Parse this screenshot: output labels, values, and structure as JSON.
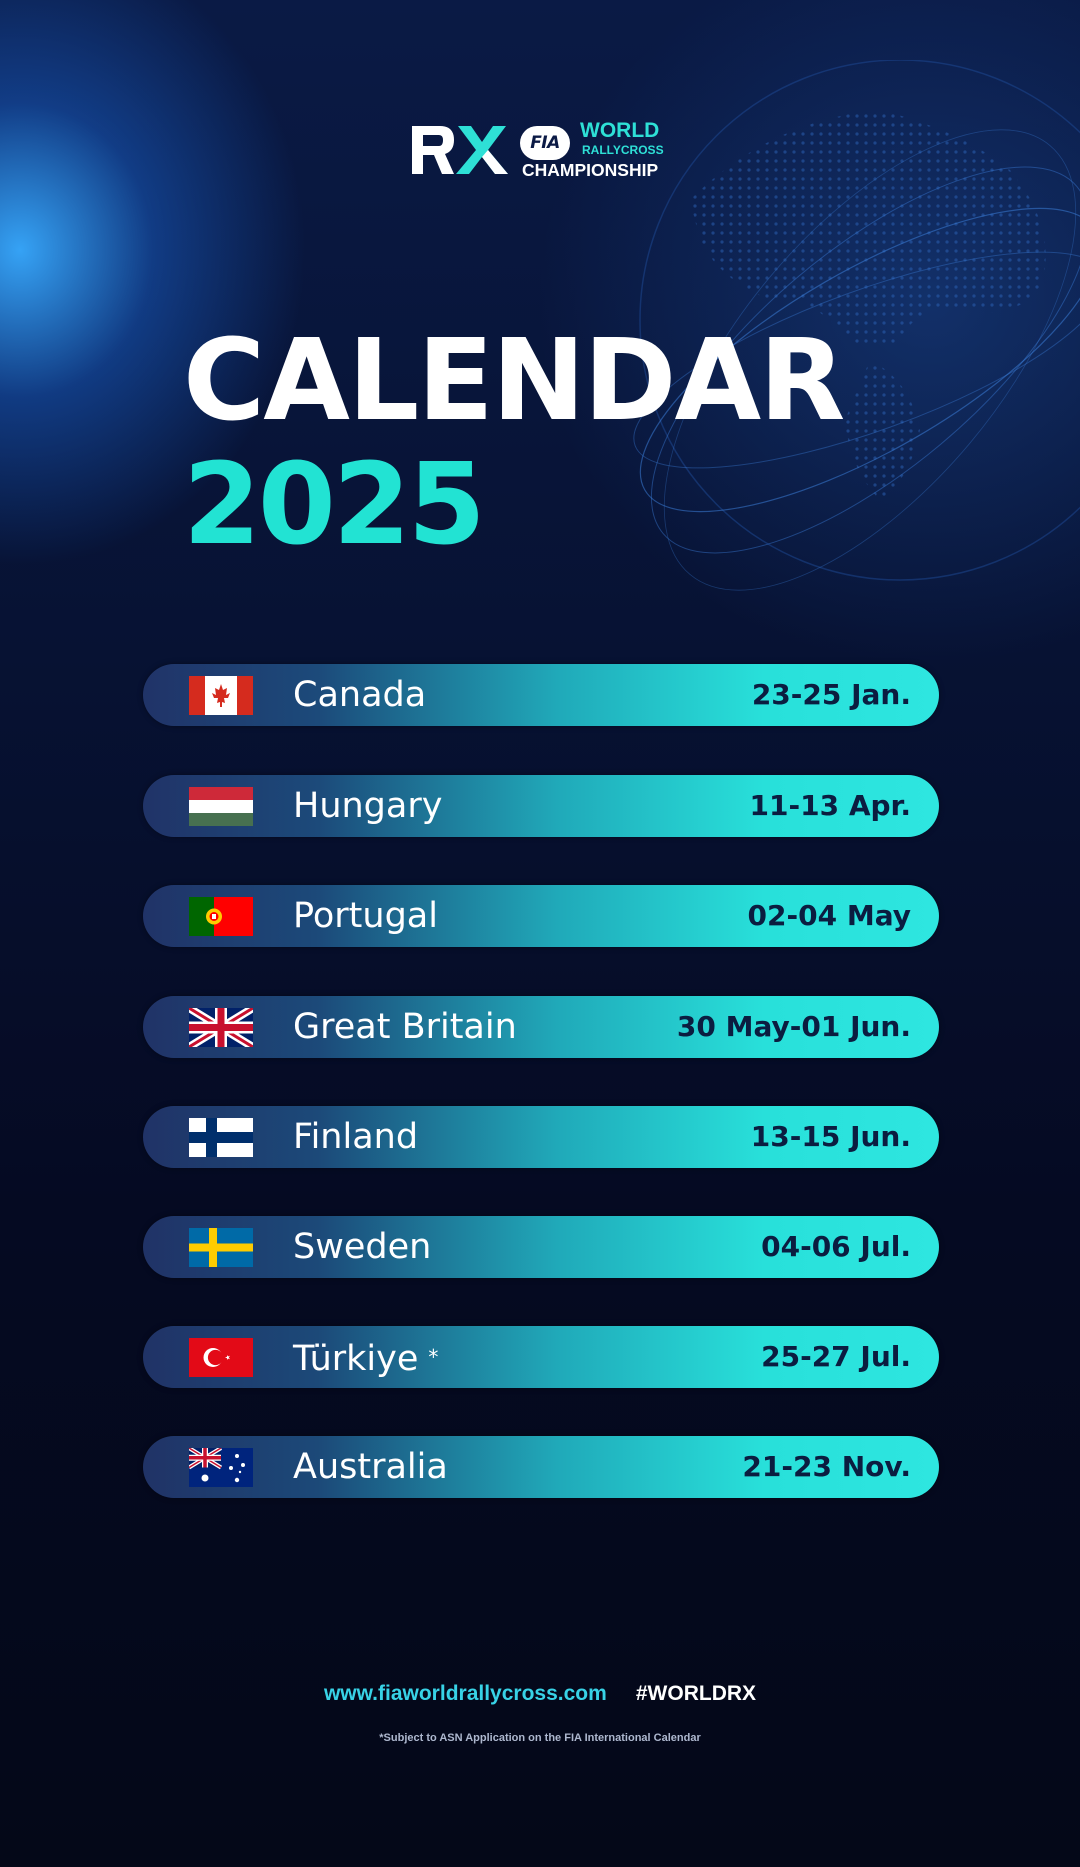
{
  "logo": {
    "mark": "RX",
    "badge": "FIA",
    "line1": "WORLD",
    "line2": "RALLYCROSS",
    "line3": "CHAMPIONSHIP"
  },
  "title": "CALENDAR",
  "year": "2025",
  "events": [
    {
      "flag": "canada-flag-icon",
      "country": "Canada",
      "dates": "23-25 Jan."
    },
    {
      "flag": "hungary-flag-icon",
      "country": "Hungary",
      "dates": "11-13 Apr."
    },
    {
      "flag": "portugal-flag-icon",
      "country": "Portugal",
      "dates": "02-04 May"
    },
    {
      "flag": "great-britain-flag-icon",
      "country": "Great Britain",
      "dates": "30 May-01 Jun."
    },
    {
      "flag": "finland-flag-icon",
      "country": "Finland",
      "dates": "13-15 Jun."
    },
    {
      "flag": "sweden-flag-icon",
      "country": "Sweden",
      "dates": "04-06 Jul."
    },
    {
      "flag": "turkiye-flag-icon",
      "country": "Türkiye",
      "marker": "*",
      "dates": "25-27 Jul."
    },
    {
      "flag": "australia-flag-icon",
      "country": "Australia",
      "dates": "21-23 Nov."
    }
  ],
  "footer": {
    "url": "www.fiaworldrallycross.com",
    "hashtag": "#WORLDRX",
    "note": "*Subject to ASN Application on the FIA International Calendar"
  },
  "colors": {
    "accent": "#22e3d3",
    "background": "#060b1f",
    "date_text": "#0b1d40"
  }
}
